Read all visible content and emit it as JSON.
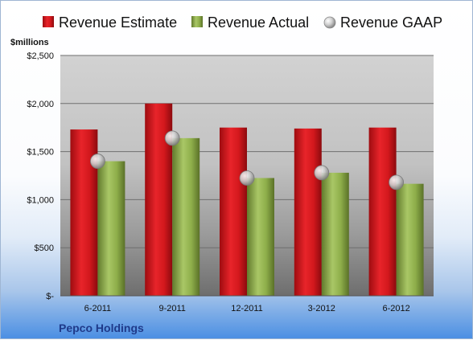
{
  "chart_data": {
    "type": "bar",
    "title": "",
    "unit_label": "$millions",
    "company": "Pepco Holdings",
    "categories": [
      "6-2011",
      "9-2011",
      "12-2011",
      "3-2012",
      "6-2012"
    ],
    "series": [
      {
        "name": "Revenue Estimate",
        "type": "bar",
        "color": "#d6161c",
        "values": [
          1730,
          2000,
          1750,
          1740,
          1750
        ]
      },
      {
        "name": "Revenue Actual",
        "type": "bar",
        "color": "#8fb04a",
        "values": [
          1400,
          1640,
          1225,
          1280,
          1165
        ]
      },
      {
        "name": "Revenue GAAP",
        "type": "marker",
        "color": "#bfbfbf",
        "values": [
          1400,
          1640,
          1225,
          1280,
          1180
        ]
      }
    ],
    "y_ticks": [
      {
        "value": 0,
        "label": "$-"
      },
      {
        "value": 500,
        "label": "$500"
      },
      {
        "value": 1000,
        "label": "$1,000"
      },
      {
        "value": 1500,
        "label": "$1,500"
      },
      {
        "value": 2000,
        "label": "$2,000"
      },
      {
        "value": 2500,
        "label": "$2,500"
      }
    ],
    "ylim": [
      0,
      2500
    ],
    "grid": true,
    "legend_position": "top"
  }
}
